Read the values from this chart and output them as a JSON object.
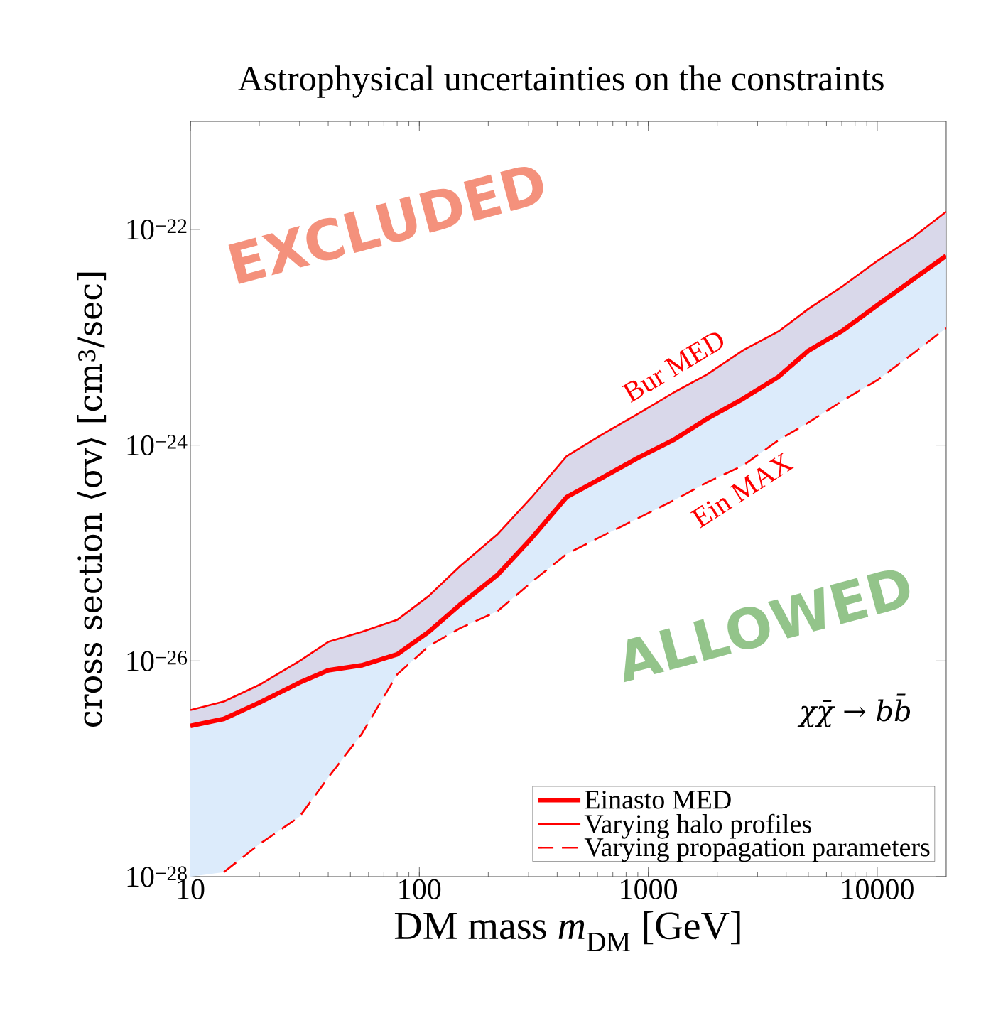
{
  "chart_data": {
    "type": "line",
    "title": "Astrophysical uncertainties on the constraints",
    "xlabel": "DM mass *m*$_{DM}$ [GeV]",
    "ylabel": "cross section ⟨σv⟩ [cm$^{3}$/sec]",
    "x": [
      10,
      14,
      20,
      30,
      40,
      56,
      80,
      110,
      150,
      220,
      310,
      440,
      630,
      900,
      1300,
      1800,
      2600,
      3700,
      5000,
      7100,
      10000,
      14500,
      20000
    ],
    "series": [
      {
        "name": "Einasto MED",
        "color": "#ff0000",
        "line_style": "solid",
        "lower": [
          1e-28,
          1.1e-28,
          2e-28,
          3.6e-28,
          8.3e-28,
          2.1e-27,
          7.5e-27,
          1.37e-26,
          2e-26,
          2.9e-26,
          5.4e-26,
          9.8e-26,
          1.44e-25,
          2.1e-25,
          3.1e-25,
          4.5e-25,
          6.5e-25,
          1.11e-24,
          1.62e-24,
          2.6e-24,
          4e-24,
          7.2e-24,
          1.22e-23
        ],
        "upper": [
          2.5e-27,
          2.9e-27,
          4.1e-27,
          6.3e-27,
          8.2e-27,
          9.1e-27,
          1.15e-26,
          1.86e-26,
          3.3e-26,
          6.3e-26,
          1.38e-25,
          3.3e-25,
          5e-25,
          7.6e-25,
          1.13e-24,
          1.75e-24,
          2.7e-24,
          4.3e-24,
          7.5e-24,
          1.16e-23,
          1.98e-23,
          3.5e-23,
          5.7e-23
        ],
        "values": [
          2.5e-27,
          2.9e-27,
          4.1e-27,
          6.3e-27,
          8.2e-27,
          9.1e-27,
          1.15e-26,
          1.86e-26,
          3.3e-26,
          6.3e-26,
          1.38e-25,
          3.3e-25,
          5e-25,
          7.6e-25,
          1.13e-24,
          1.75e-24,
          2.7e-24,
          4.3e-24,
          7.5e-24,
          1.16e-23,
          1.98e-23,
          3.5e-23,
          5.7e-23
        ]
      },
      {
        "name": "Varying halo profiles",
        "color": "#ff0000",
        "line_style": "solid",
        "lower": [
          2.5e-27,
          2.9e-27,
          4.1e-27,
          6.3e-27,
          8.2e-27,
          9.1e-27,
          1.15e-26,
          1.86e-26,
          3.3e-26,
          6.3e-26,
          1.38e-25,
          3.3e-25,
          5e-25,
          7.6e-25,
          1.13e-24,
          1.75e-24,
          2.7e-24,
          4.3e-24,
          7.5e-24,
          1.16e-23,
          1.98e-23,
          3.5e-23,
          5.7e-23
        ],
        "upper": [
          3.5e-27,
          4.2e-27,
          6e-27,
          1e-26,
          1.5e-26,
          1.86e-26,
          2.4e-26,
          4e-26,
          7.5e-26,
          1.5e-25,
          3.3e-25,
          7.9e-25,
          1.26e-24,
          1.95e-24,
          3.1e-24,
          4.5e-24,
          7.6e-24,
          1.13e-23,
          1.83e-23,
          3e-23,
          5.1e-23,
          8.6e-23,
          1.46e-22
        ],
        "values": [
          3.5e-27,
          4.2e-27,
          6e-27,
          1e-26,
          1.5e-26,
          1.86e-26,
          2.4e-26,
          4e-26,
          7.5e-26,
          1.5e-25,
          3.3e-25,
          7.9e-25,
          1.26e-24,
          1.95e-24,
          3.1e-24,
          4.5e-24,
          7.6e-24,
          1.13e-23,
          1.83e-23,
          3e-23,
          5.1e-23,
          8.6e-23,
          1.46e-22
        ]
      },
      {
        "name": "Varying propagation parameters",
        "color": "#ff0000",
        "line_style": "dashed",
        "values": [
          null,
          1.1e-28,
          2e-28,
          3.6e-28,
          8.3e-28,
          2.1e-27,
          7.5e-27,
          1.37e-26,
          2e-26,
          2.9e-26,
          5.4e-26,
          9.8e-26,
          1.44e-25,
          2.1e-25,
          3.1e-25,
          4.5e-25,
          6.5e-25,
          1.11e-24,
          1.62e-24,
          2.6e-24,
          4e-24,
          7.2e-24,
          1.22e-23
        ]
      }
    ],
    "log": "xy",
    "xlim": [
      10,
      20000
    ],
    "ylim": [
      1e-28,
      1e-21
    ],
    "xticks": [
      10,
      100,
      1000,
      10000
    ],
    "yticks": [
      {
        "value": 1e-28,
        "label": "10$^{−28}$"
      },
      {
        "value": 1e-26,
        "label": "10$^{−26}$"
      },
      {
        "value": 1e-24,
        "label": "10$^{−24}$"
      },
      {
        "value": 1e-22,
        "label": "10$^{−22}$"
      }
    ],
    "marker": "none",
    "legend": "bottom right",
    "annotations": [
      "EXCLUDED",
      "ALLOWED",
      "*χχ̄* → *bb̄*",
      "Bur MED",
      "Ein MAX"
    ]
  }
}
